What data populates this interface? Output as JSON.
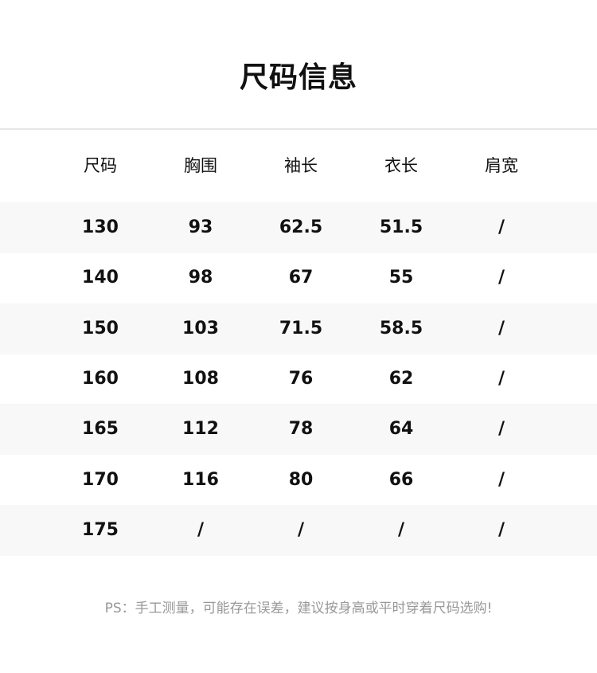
{
  "title": "尺码信息",
  "table": {
    "headers": [
      "尺码",
      "胸围",
      "袖长",
      "衣长",
      "肩宽"
    ],
    "rows": [
      [
        "130",
        "93",
        "62.5",
        "51.5",
        "/"
      ],
      [
        "140",
        "98",
        "67",
        "55",
        "/"
      ],
      [
        "150",
        "103",
        "71.5",
        "58.5",
        "/"
      ],
      [
        "160",
        "108",
        "76",
        "62",
        "/"
      ],
      [
        "165",
        "112",
        "78",
        "64",
        "/"
      ],
      [
        "170",
        "116",
        "80",
        "66",
        "/"
      ],
      [
        "175",
        "/",
        "/",
        "/",
        "/"
      ]
    ]
  },
  "note": "PS：手工测量，可能存在误差，建议按身高或平时穿着尺码选购!"
}
